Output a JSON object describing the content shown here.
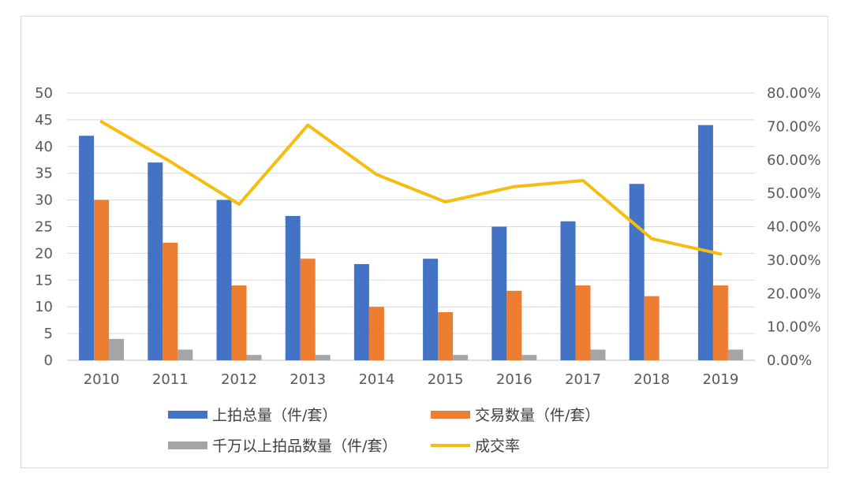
{
  "chart_data": {
    "type": "bar",
    "categories": [
      "2010",
      "2011",
      "2012",
      "2013",
      "2014",
      "2015",
      "2016",
      "2017",
      "2018",
      "2019"
    ],
    "series": [
      {
        "name": "上拍总量（件/套）",
        "type": "bar",
        "axis": "left",
        "color": "#4472C4",
        "values": [
          42,
          37,
          30,
          27,
          18,
          19,
          25,
          26,
          33,
          44
        ]
      },
      {
        "name": "交易数量（件/套）",
        "type": "bar",
        "axis": "left",
        "color": "#ED7D31",
        "values": [
          30,
          22,
          14,
          19,
          10,
          9,
          13,
          14,
          12,
          14
        ]
      },
      {
        "name": "千万以上拍品数量（件/套）",
        "type": "bar",
        "axis": "left",
        "color": "#A5A5A5",
        "values": [
          4,
          2,
          1,
          1,
          0,
          1,
          1,
          2,
          0,
          2
        ]
      },
      {
        "name": "成交率",
        "type": "line",
        "axis": "right",
        "color": "#F5BD12",
        "values": [
          71.4,
          59.5,
          46.7,
          70.4,
          55.6,
          47.4,
          52.0,
          53.8,
          36.4,
          31.8
        ]
      }
    ],
    "y_left": {
      "min": 0,
      "max": 50,
      "step": 5,
      "ticks": [
        "0",
        "5",
        "10",
        "15",
        "20",
        "25",
        "30",
        "35",
        "40",
        "45",
        "50"
      ]
    },
    "y_right": {
      "min": 0,
      "max": 80,
      "step": 10,
      "ticks": [
        "0.00%",
        "10.00%",
        "20.00%",
        "30.00%",
        "40.00%",
        "50.00%",
        "60.00%",
        "70.00%",
        "80.00%"
      ]
    },
    "grid": true,
    "legend_position": "bottom"
  }
}
